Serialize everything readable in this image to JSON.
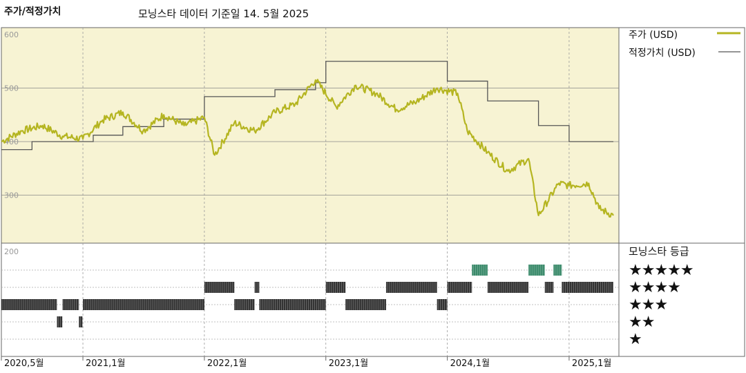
{
  "header": {
    "chart_label": "주가/적정가치",
    "source_text": "모닝스타 데이터 기준일 14. 5월 2025"
  },
  "legend": {
    "price_label": "주가 (USD)",
    "fair_value_label": "적정가치 (USD)"
  },
  "rating_panel": {
    "title": "모닝스타 등급",
    "levels": [
      "★★★★★",
      "★★★★",
      "★★★",
      "★★",
      "★"
    ]
  },
  "colors": {
    "price": "#b5b521",
    "fair_value": "#555555",
    "plot_bg": "#f7f3d3",
    "five_star": "#3a8a6a",
    "rating_bar": "#333333"
  },
  "chart_data": [
    {
      "type": "line",
      "title": "",
      "x_ticks": [
        "2020,5월",
        "2021,1월",
        "2022,1월",
        "2023,1월",
        "2024,1월",
        "2025,1월"
      ],
      "y_ticks": [
        600,
        500,
        400,
        300,
        200
      ],
      "ylim": [
        200,
        600
      ],
      "xlim": [
        "2020-05-01",
        "2025-05-14"
      ],
      "grid": true,
      "legend_position": "right",
      "series": [
        {
          "name": "주가 (USD)",
          "x": [
            "2020-05-01",
            "2020-07-01",
            "2020-09-01",
            "2020-11-01",
            "2021-01-01",
            "2021-03-01",
            "2021-05-01",
            "2021-07-01",
            "2021-09-01",
            "2021-11-01",
            "2022-01-01",
            "2022-02-01",
            "2022-04-01",
            "2022-06-01",
            "2022-08-01",
            "2022-10-01",
            "2022-12-01",
            "2023-02-01",
            "2023-04-01",
            "2023-06-01",
            "2023-08-01",
            "2023-10-01",
            "2023-12-01",
            "2024-02-01",
            "2024-03-01",
            "2024-05-01",
            "2024-07-01",
            "2024-09-01",
            "2024-10-01",
            "2024-12-01",
            "2025-01-01",
            "2025-03-01",
            "2025-04-01",
            "2025-05-14"
          ],
          "values": [
            400,
            420,
            430,
            410,
            405,
            440,
            455,
            420,
            450,
            430,
            445,
            375,
            435,
            420,
            455,
            470,
            515,
            465,
            505,
            490,
            460,
            475,
            500,
            490,
            420,
            380,
            345,
            368,
            262,
            322,
            318,
            322,
            275,
            262
          ]
        },
        {
          "name": "적정가치 (USD)",
          "x": [
            "2020-05-01",
            "2020-08-01",
            "2021-02-01",
            "2021-05-01",
            "2021-09-01",
            "2022-01-01",
            "2022-08-01",
            "2022-12-01",
            "2023-01-01",
            "2023-12-01",
            "2024-01-01",
            "2024-05-01",
            "2024-10-01",
            "2025-01-01",
            "2025-05-14"
          ],
          "values": [
            385,
            400,
            412,
            428,
            442,
            484,
            497,
            510,
            550,
            550,
            513,
            476,
            430,
            400,
            400
          ]
        }
      ]
    },
    {
      "type": "heatmap",
      "title": "모닝스타 등급",
      "rows": [
        "★★★★★",
        "★★★★",
        "★★★",
        "★★",
        "★"
      ],
      "periods": [
        {
          "stars": 3,
          "from": "2020-05-01",
          "to": "2020-10-15"
        },
        {
          "stars": 2,
          "from": "2020-10-15",
          "to": "2020-10-31"
        },
        {
          "stars": 3,
          "from": "2020-11-01",
          "to": "2020-12-20"
        },
        {
          "stars": 2,
          "from": "2020-12-20",
          "to": "2020-12-31"
        },
        {
          "stars": 3,
          "from": "2021-01-01",
          "to": "2022-01-01"
        },
        {
          "stars": 4,
          "from": "2022-01-01",
          "to": "2022-04-01"
        },
        {
          "stars": 3,
          "from": "2022-04-01",
          "to": "2022-06-01"
        },
        {
          "stars": 4,
          "from": "2022-06-01",
          "to": "2022-06-15"
        },
        {
          "stars": 3,
          "from": "2022-06-15",
          "to": "2023-01-01"
        },
        {
          "stars": 4,
          "from": "2023-01-01",
          "to": "2023-03-01"
        },
        {
          "stars": 3,
          "from": "2023-03-01",
          "to": "2023-07-01"
        },
        {
          "stars": 4,
          "from": "2023-07-01",
          "to": "2023-12-01"
        },
        {
          "stars": 3,
          "from": "2023-12-01",
          "to": "2024-01-01"
        },
        {
          "stars": 4,
          "from": "2024-01-01",
          "to": "2024-03-15"
        },
        {
          "stars": 5,
          "from": "2024-03-15",
          "to": "2024-05-01"
        },
        {
          "stars": 4,
          "from": "2024-05-01",
          "to": "2024-09-01"
        },
        {
          "stars": 5,
          "from": "2024-09-01",
          "to": "2024-10-20"
        },
        {
          "stars": 4,
          "from": "2024-10-20",
          "to": "2024-11-15"
        },
        {
          "stars": 5,
          "from": "2024-11-15",
          "to": "2024-12-10"
        },
        {
          "stars": 4,
          "from": "2024-12-10",
          "to": "2025-05-14"
        }
      ]
    }
  ]
}
